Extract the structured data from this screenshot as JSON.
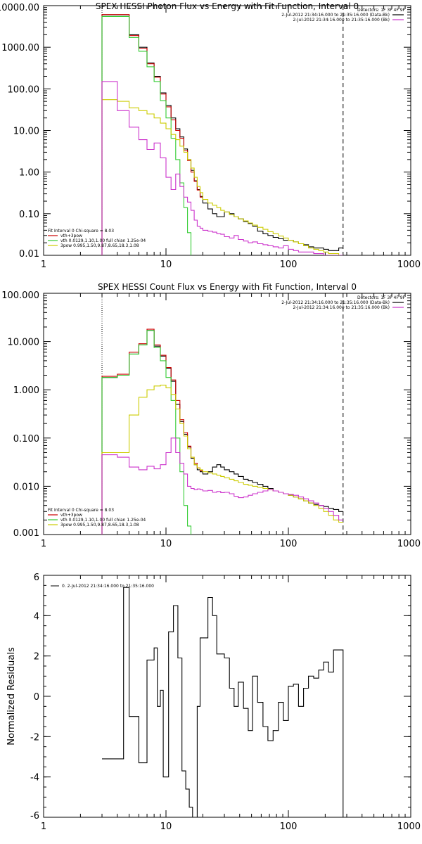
{
  "chart_data": [
    {
      "type": "line",
      "title": "SPEX HESSI Photon Flux vs Energy with Fit Function, Interval 0",
      "x_scale": "log",
      "y_scale": "log",
      "xlim": [
        1,
        1000
      ],
      "ylim": [
        0.01,
        10000
      ],
      "x_ticks": [
        1,
        10,
        100,
        1000
      ],
      "x_tick_labels": [
        "1",
        "10",
        "100",
        "1000"
      ],
      "y_ticks": [
        0.01,
        0.1,
        1,
        10,
        100,
        1000,
        10000
      ],
      "y_tick_labels": [
        "0.01",
        "0.10",
        "1.00",
        "10.00",
        "100.00",
        "1000.00",
        "10000.00"
      ],
      "legend_top_right": [
        {
          "text": "Detectors: 1F 3F 4F 9F",
          "color": null
        },
        {
          "text": "2-Jul-2012 21:34:16.000 to 21:35:16.000 (Data-Bk)",
          "color": "#000000"
        },
        {
          "text": "2-Jul-2012 21:34:16.000 to 21:35:16.000 (Bk)",
          "color": "#cc33cc"
        }
      ],
      "legend_bottom_left": [
        {
          "text": "Fit Interval 0   Chi-square = 8.03",
          "color": null
        },
        {
          "text": "vth+3pow",
          "color": "#cc0000"
        },
        {
          "text": "vth 0.0129,1.10,1.00  full chian 1.25e-04",
          "color": "#33cc33"
        },
        {
          "text": "3pow 0.995,1.50,9.87,8.65,18.3,1.08",
          "color": "#cccc00"
        }
      ],
      "vlines": [
        {
          "x": 3,
          "style": "dotted"
        },
        {
          "x": 280,
          "style": "dashed"
        }
      ],
      "series": [
        {
          "name": "2-Jul-2012 21:34:16.000 to 21:35:16.000 (Data-Bk)",
          "color": "#000000",
          "edges": [
            3,
            4,
            5,
            6,
            7,
            8,
            9,
            10,
            11,
            12,
            13,
            14,
            15,
            16,
            17,
            18,
            19,
            20,
            22,
            24,
            26,
            28,
            30,
            33,
            36,
            39,
            43,
            47,
            51,
            56,
            62,
            68,
            75,
            83,
            91,
            100,
            110,
            121,
            133,
            146,
            161,
            177,
            194,
            213,
            234,
            258,
            280
          ],
          "values": [
            6000,
            6000,
            2000,
            1000,
            420,
            200,
            80,
            40,
            20,
            11,
            7,
            3.6,
            2.0,
            1.1,
            0.62,
            0.38,
            0.26,
            0.18,
            0.13,
            0.1,
            0.085,
            0.085,
            0.11,
            0.1,
            0.085,
            0.075,
            0.065,
            0.058,
            0.05,
            0.038,
            0.033,
            0.03,
            0.027,
            0.025,
            0.023,
            0.023,
            0.021,
            0.019,
            0.018,
            0.016,
            0.015,
            0.015,
            0.014,
            0.013,
            0.013,
            0.015
          ]
        },
        {
          "name": "vth+3pow",
          "color": "#cc0000",
          "edges": [
            3,
            4,
            5,
            6,
            7,
            8,
            9,
            10,
            11,
            12,
            13,
            14,
            15,
            16,
            17,
            18,
            19,
            20
          ],
          "values": [
            6100,
            6100,
            1900,
            950,
            400,
            190,
            75,
            37,
            18,
            10,
            6.5,
            3.3,
            1.9,
            1.0,
            0.6,
            0.37,
            0.25
          ]
        },
        {
          "name": "vth 0.0129,1.10,1.00  full chian 1.25e-04",
          "color": "#33cc33",
          "edges": [
            3,
            4,
            5,
            6,
            7,
            8,
            9,
            10,
            11,
            12,
            13,
            14,
            15,
            16,
            17
          ],
          "values": [
            5500,
            5500,
            1700,
            800,
            340,
            150,
            52,
            20,
            6.5,
            2.0,
            0.55,
            0.14,
            0.035,
            0.008
          ]
        },
        {
          "name": "3pow 0.995,1.50,9.87,8.65,18.3,1.08",
          "color": "#cccc00",
          "edges": [
            3,
            4,
            5,
            6,
            7,
            8,
            9,
            10,
            11,
            12,
            13,
            14,
            15,
            16,
            17,
            18,
            19,
            20,
            22,
            24,
            26,
            28,
            30,
            33,
            36,
            39,
            43,
            47,
            51,
            56,
            62,
            68,
            75,
            83,
            91,
            100,
            110,
            121,
            133,
            146,
            161,
            177,
            194,
            213,
            234,
            258,
            280
          ],
          "values": [
            55,
            50,
            35,
            30,
            25,
            20,
            15,
            11,
            8,
            6,
            4.2,
            3.0,
            2.0,
            1.25,
            0.75,
            0.45,
            0.32,
            0.22,
            0.18,
            0.16,
            0.14,
            0.12,
            0.11,
            0.095,
            0.085,
            0.075,
            0.067,
            0.06,
            0.053,
            0.047,
            0.042,
            0.037,
            0.033,
            0.029,
            0.026,
            0.023,
            0.021,
            0.019,
            0.017,
            0.015,
            0.014,
            0.013,
            0.012,
            0.011,
            0.011,
            0.01
          ]
        },
        {
          "name": "2-Jul-2012 21:34:16.000 to 21:35:16.000 (Bk)",
          "color": "#cc33cc",
          "edges": [
            3,
            4,
            5,
            6,
            7,
            8,
            9,
            10,
            11,
            12,
            13,
            14,
            15,
            16,
            17,
            18,
            19,
            20,
            22,
            24,
            26,
            28,
            30,
            33,
            36,
            39,
            43,
            47,
            51,
            56,
            62,
            68,
            75,
            83,
            91,
            100,
            110,
            121,
            133,
            146,
            161,
            177,
            194,
            213,
            234,
            258,
            280
          ],
          "values": [
            150,
            30,
            12,
            6,
            3.5,
            5,
            2.2,
            0.75,
            0.38,
            0.9,
            0.45,
            0.25,
            0.19,
            0.12,
            0.07,
            0.05,
            0.045,
            0.04,
            0.038,
            0.036,
            0.033,
            0.032,
            0.028,
            0.026,
            0.03,
            0.024,
            0.022,
            0.02,
            0.021,
            0.019,
            0.018,
            0.017,
            0.016,
            0.015,
            0.017,
            0.014,
            0.013,
            0.012,
            0.012,
            0.012,
            0.011,
            0.011,
            0.01,
            0.01,
            0.01,
            0.01
          ]
        }
      ]
    },
    {
      "type": "line",
      "title": "SPEX HESSI Count Flux vs Energy with Fit Function, Interval 0",
      "x_scale": "log",
      "y_scale": "log",
      "xlim": [
        1,
        1000
      ],
      "ylim": [
        0.001,
        100
      ],
      "x_ticks": [
        1,
        10,
        100,
        1000
      ],
      "x_tick_labels": [
        "1",
        "10",
        "100",
        "1000"
      ],
      "y_ticks": [
        0.001,
        0.01,
        0.1,
        1,
        10,
        100
      ],
      "y_tick_labels": [
        "0.001",
        "0.010",
        "0.100",
        "1.000",
        "10.000",
        "100.000"
      ],
      "legend_top_right": [
        {
          "text": "Detectors: 1F 3F 4F 9F",
          "color": null
        },
        {
          "text": "2-Jul-2012 21:34:16.000 to 21:35:16.000 (Data-Bk)",
          "color": "#000000"
        },
        {
          "text": "2-Jul-2012 21:34:16.000 to 21:35:16.000 (Bk)",
          "color": "#cc33cc"
        }
      ],
      "legend_bottom_left": [
        {
          "text": "Fit Interval 0   Chi-square = 8.03",
          "color": null
        },
        {
          "text": "vth+3pow",
          "color": "#cc0000"
        },
        {
          "text": "vth 0.0129,1.10,1.00  full chian 1.25e-04",
          "color": "#33cc33"
        },
        {
          "text": "3pow 0.995,1.50,9.87,8.65,18.3,1.08",
          "color": "#cccc00"
        }
      ],
      "vlines": [
        {
          "x": 3,
          "style": "dotted"
        },
        {
          "x": 280,
          "style": "dashed"
        }
      ],
      "series": [
        {
          "name": "2-Jul-2012 21:34:16.000 to 21:35:16.000 (Data-Bk)",
          "color": "#000000",
          "edges": [
            3,
            4,
            5,
            6,
            7,
            8,
            9,
            10,
            11,
            12,
            13,
            14,
            15,
            16,
            17,
            18,
            19,
            20,
            22,
            24,
            26,
            28,
            30,
            33,
            36,
            39,
            43,
            47,
            51,
            56,
            62,
            68,
            75,
            83,
            91,
            100,
            110,
            121,
            133,
            146,
            161,
            177,
            194,
            213,
            234,
            258,
            280
          ],
          "values": [
            1.8,
            2.0,
            5.5,
            8.5,
            17,
            8,
            5,
            2.8,
            1.5,
            0.5,
            0.22,
            0.12,
            0.065,
            0.038,
            0.028,
            0.022,
            0.02,
            0.018,
            0.02,
            0.025,
            0.028,
            0.025,
            0.022,
            0.02,
            0.018,
            0.016,
            0.014,
            0.013,
            0.012,
            0.011,
            0.01,
            0.009,
            0.008,
            0.0075,
            0.007,
            0.0065,
            0.006,
            0.0055,
            0.005,
            0.0045,
            0.0042,
            0.004,
            0.0038,
            0.0035,
            0.0033,
            0.003
          ]
        },
        {
          "name": "vth+3pow",
          "color": "#cc0000",
          "edges": [
            3,
            4,
            5,
            6,
            7,
            8,
            9,
            10,
            11,
            12,
            13,
            14,
            15,
            16,
            17,
            18,
            19,
            20
          ],
          "values": [
            1.9,
            2.1,
            6,
            9,
            18,
            8.5,
            5.2,
            2.9,
            1.6,
            0.6,
            0.24,
            0.13,
            0.068,
            0.04,
            0.03,
            0.024,
            0.021
          ]
        },
        {
          "name": "vth 0.0129,1.10,1.00  full chian 1.25e-04",
          "color": "#33cc33",
          "edges": [
            3,
            4,
            5,
            6,
            7,
            8,
            9,
            10,
            11,
            12,
            13,
            14,
            15,
            16,
            17
          ],
          "values": [
            1.8,
            2.0,
            5.5,
            8.5,
            17,
            7.5,
            4,
            1.8,
            0.6,
            0.1,
            0.02,
            0.004,
            0.0015,
            0.0005
          ]
        },
        {
          "name": "3pow 0.995,1.50,9.87,8.65,18.3,1.08",
          "color": "#cccc00",
          "edges": [
            3,
            4,
            5,
            6,
            7,
            8,
            9,
            10,
            11,
            12,
            13,
            14,
            15,
            16,
            17,
            18,
            19,
            20,
            22,
            24,
            26,
            28,
            30,
            33,
            36,
            39,
            43,
            47,
            51,
            56,
            62,
            68,
            75,
            83,
            91,
            100,
            110,
            121,
            133,
            146,
            161,
            177,
            194,
            213,
            234,
            258,
            280
          ],
          "values": [
            0.05,
            0.05,
            0.3,
            0.7,
            1.0,
            1.2,
            1.25,
            1.1,
            0.8,
            0.4,
            0.2,
            0.11,
            0.06,
            0.04,
            0.028,
            0.024,
            0.022,
            0.02,
            0.019,
            0.018,
            0.017,
            0.016,
            0.015,
            0.014,
            0.013,
            0.012,
            0.011,
            0.0105,
            0.01,
            0.0095,
            0.009,
            0.0085,
            0.008,
            0.0075,
            0.007,
            0.0065,
            0.006,
            0.0055,
            0.005,
            0.0045,
            0.004,
            0.0035,
            0.003,
            0.0025,
            0.002,
            0.0018
          ]
        },
        {
          "name": "2-Jul-2012 21:34:16.000 to 21:35:16.000 (Bk)",
          "color": "#cc33cc",
          "edges": [
            3,
            4,
            5,
            6,
            7,
            8,
            9,
            10,
            11,
            12,
            13,
            14,
            15,
            16,
            17,
            18,
            19,
            20,
            22,
            24,
            26,
            28,
            30,
            33,
            36,
            39,
            43,
            47,
            51,
            56,
            62,
            68,
            75,
            83,
            91,
            100,
            110,
            121,
            133,
            146,
            161,
            177,
            194,
            213,
            234,
            258,
            280
          ],
          "values": [
            0.045,
            0.04,
            0.025,
            0.022,
            0.026,
            0.023,
            0.028,
            0.05,
            0.1,
            0.05,
            0.03,
            0.018,
            0.01,
            0.009,
            0.0085,
            0.0088,
            0.0085,
            0.008,
            0.0082,
            0.0075,
            0.0078,
            0.0074,
            0.0075,
            0.007,
            0.0062,
            0.0058,
            0.006,
            0.0065,
            0.007,
            0.0075,
            0.008,
            0.0085,
            0.008,
            0.0075,
            0.007,
            0.0068,
            0.0065,
            0.006,
            0.0055,
            0.005,
            0.0045,
            0.004,
            0.0035,
            0.003,
            0.0025,
            0.002
          ]
        }
      ]
    },
    {
      "type": "line",
      "title": "",
      "ylabel": "Normalized Residuals",
      "x_scale": "log",
      "xlim": [
        1,
        1000
      ],
      "ylim": [
        -6,
        6
      ],
      "x_ticks": [
        1,
        10,
        100,
        1000
      ],
      "x_tick_labels": [
        "1",
        "10",
        "100",
        "1000"
      ],
      "y_ticks": [
        -6,
        -4,
        -2,
        0,
        2,
        4,
        6
      ],
      "y_tick_labels": [
        "-6",
        "-4",
        "-2",
        "0",
        "2",
        "4",
        "6"
      ],
      "legend_top_left": [
        {
          "text": "0. 2-Jul-2012 21:34:16.000 to 21:35:16.000",
          "color": "#000000"
        }
      ],
      "series": [
        {
          "name": "0. 2-Jul-2012 21:34:16.000 to 21:35:16.000",
          "color": "#000000",
          "edges": [
            3,
            4,
            4.5,
            5,
            5.5,
            6,
            7,
            7.5,
            8,
            8.5,
            9,
            9.5,
            10,
            10.5,
            11,
            11.5,
            12,
            12.5,
            13,
            13.5,
            14,
            14.5,
            15,
            15.5,
            16,
            16.5,
            17,
            18,
            19,
            20,
            22,
            24,
            26,
            28,
            30,
            33,
            36,
            39,
            43,
            47,
            51,
            56,
            62,
            68,
            75,
            83,
            91,
            100,
            110,
            121,
            133,
            146,
            161,
            177,
            194,
            213,
            234,
            258,
            280
          ],
          "values": [
            -3.1,
            -3.1,
            5.4,
            -1.0,
            -1.0,
            -3.3,
            1.8,
            1.8,
            2.4,
            -0.5,
            0.3,
            -4.0,
            -4.0,
            3.2,
            3.2,
            4.5,
            4.5,
            1.9,
            1.9,
            -3.7,
            -3.7,
            -4.6,
            -4.6,
            -5.5,
            -5.5,
            -6.0,
            -6.0,
            -0.5,
            2.9,
            2.9,
            4.9,
            4.0,
            2.1,
            2.1,
            1.9,
            0.4,
            -0.5,
            0.7,
            -0.6,
            -1.7,
            1.0,
            -0.3,
            -1.5,
            -2.2,
            -1.7,
            -0.3,
            -1.2,
            0.5,
            0.6,
            -0.5,
            0.4,
            1.0,
            0.9,
            1.3,
            1.7,
            1.2,
            2.3,
            2.3
          ]
        }
      ]
    }
  ]
}
